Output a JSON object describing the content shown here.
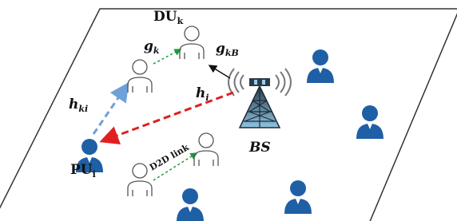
{
  "labels": {
    "du": {
      "main": "DU",
      "sub": "k"
    },
    "gk": {
      "main": "g",
      "sub": "k"
    },
    "gkb": {
      "main": "g",
      "sub": "kB"
    },
    "hki": {
      "main": "h",
      "sub": "ki"
    },
    "hi": {
      "main": "h",
      "sub": "i"
    },
    "pu": {
      "main": "PU",
      "sub": "i"
    },
    "bs": "BS",
    "d2d": "D2D link"
  }
}
